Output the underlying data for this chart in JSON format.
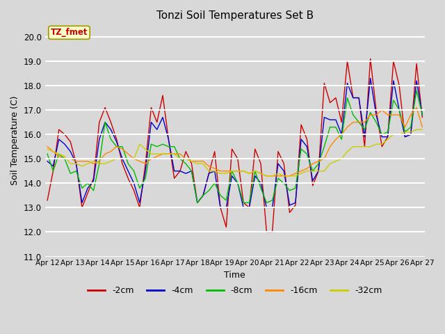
{
  "title": "Tonzi Soil Temperatures Set B",
  "xlabel": "Time",
  "ylabel": "Soil Temperature (C)",
  "ylim": [
    11.0,
    20.5
  ],
  "yticks": [
    11.0,
    12.0,
    13.0,
    14.0,
    15.0,
    16.0,
    17.0,
    18.0,
    19.0,
    20.0
  ],
  "xtick_labels": [
    "Apr 12",
    "Apr 13",
    "Apr 14",
    "Apr 15",
    "Apr 16",
    "Apr 17",
    "Apr 18",
    "Apr 19",
    "Apr 20",
    "Apr 21",
    "Apr 22",
    "Apr 23",
    "Apr 24",
    "Apr 25",
    "Apr 26",
    "Apr 27"
  ],
  "legend_labels": [
    "-2cm",
    "-4cm",
    "-8cm",
    "-16cm",
    "-32cm"
  ],
  "legend_colors": [
    "#cc0000",
    "#0000cc",
    "#00bb00",
    "#ff8800",
    "#cccc00"
  ],
  "annotation_text": "TZ_fmet",
  "annotation_color": "#cc0000",
  "annotation_bg": "#ffffcc",
  "fig_bg": "#d8d8d8",
  "plot_bg": "#d8d8d8",
  "series_neg2cm": [
    13.3,
    14.5,
    16.2,
    16.0,
    15.7,
    14.8,
    13.0,
    13.6,
    14.2,
    16.5,
    17.1,
    16.5,
    15.8,
    14.8,
    14.2,
    13.7,
    13.0,
    14.8,
    17.1,
    16.5,
    17.6,
    15.8,
    14.2,
    14.5,
    15.3,
    14.8,
    13.2,
    13.5,
    14.4,
    15.3,
    13.0,
    12.2,
    15.4,
    15.0,
    13.2,
    13.0,
    15.4,
    14.8,
    12.0,
    12.0,
    15.3,
    14.8,
    12.8,
    13.1,
    16.4,
    15.8,
    13.9,
    14.5,
    18.1,
    17.3,
    17.5,
    16.5,
    19.0,
    17.5,
    17.5,
    15.5,
    19.1,
    17.0,
    15.5,
    15.9,
    19.0,
    18.0,
    15.9,
    16.0,
    18.9,
    16.7
  ],
  "series_neg4cm": [
    14.9,
    14.7,
    15.8,
    15.6,
    15.3,
    14.8,
    13.2,
    13.8,
    14.1,
    15.8,
    16.5,
    16.2,
    15.7,
    15.0,
    14.5,
    14.0,
    13.2,
    14.5,
    16.5,
    16.2,
    16.7,
    15.8,
    14.5,
    14.5,
    14.4,
    14.5,
    13.2,
    13.5,
    14.4,
    14.5,
    13.0,
    13.0,
    14.3,
    14.0,
    13.0,
    13.0,
    14.3,
    14.0,
    13.0,
    13.0,
    14.8,
    14.5,
    13.1,
    13.2,
    15.8,
    15.5,
    14.1,
    14.5,
    16.7,
    16.6,
    16.6,
    16.0,
    18.1,
    17.5,
    17.5,
    15.9,
    18.3,
    16.8,
    15.9,
    15.9,
    18.2,
    17.0,
    15.9,
    16.0,
    18.2,
    16.8
  ],
  "series_neg8cm": [
    15.2,
    14.5,
    15.2,
    15.0,
    14.4,
    14.5,
    13.8,
    14.0,
    13.7,
    14.8,
    16.5,
    15.8,
    15.5,
    15.5,
    14.8,
    14.5,
    13.8,
    14.2,
    15.6,
    15.5,
    15.6,
    15.5,
    15.5,
    15.0,
    14.8,
    14.5,
    13.2,
    13.5,
    13.7,
    14.0,
    13.5,
    13.3,
    14.5,
    14.0,
    13.2,
    13.2,
    14.5,
    13.8,
    13.2,
    13.3,
    14.2,
    14.0,
    13.7,
    13.8,
    15.4,
    15.2,
    14.5,
    14.8,
    15.5,
    16.3,
    16.3,
    15.8,
    17.5,
    16.8,
    16.5,
    16.2,
    16.9,
    16.5,
    16.0,
    16.1,
    17.4,
    17.0,
    16.1,
    16.3,
    17.8,
    16.8
  ],
  "series_neg16cm": [
    15.5,
    15.3,
    15.1,
    15.0,
    15.0,
    14.9,
    14.9,
    14.9,
    14.8,
    14.9,
    15.2,
    15.3,
    15.5,
    15.4,
    15.2,
    15.0,
    14.9,
    14.8,
    15.0,
    15.1,
    15.2,
    15.2,
    15.2,
    15.2,
    15.0,
    14.9,
    14.9,
    14.9,
    14.7,
    14.6,
    14.5,
    14.5,
    14.5,
    14.5,
    14.5,
    14.4,
    14.5,
    14.4,
    14.3,
    14.3,
    14.3,
    14.3,
    14.3,
    14.4,
    14.5,
    14.6,
    14.8,
    14.9,
    15.0,
    15.5,
    15.8,
    16.0,
    16.3,
    16.5,
    16.5,
    16.5,
    16.8,
    16.8,
    17.0,
    16.8,
    16.8,
    16.8,
    16.3,
    16.8,
    17.1,
    16.3
  ],
  "series_neg32cm": [
    15.4,
    15.3,
    15.2,
    15.1,
    14.8,
    14.8,
    14.7,
    14.8,
    14.9,
    14.8,
    14.8,
    14.9,
    15.0,
    15.0,
    15.0,
    15.0,
    15.6,
    15.4,
    15.2,
    15.2,
    15.2,
    15.2,
    15.2,
    15.0,
    15.0,
    14.9,
    14.8,
    14.8,
    14.5,
    14.5,
    14.4,
    14.4,
    14.5,
    14.5,
    14.5,
    14.4,
    14.5,
    14.4,
    14.3,
    14.3,
    14.4,
    14.3,
    14.3,
    14.3,
    14.4,
    14.5,
    14.5,
    14.5,
    14.5,
    14.8,
    14.9,
    15.0,
    15.3,
    15.5,
    15.5,
    15.5,
    15.5,
    15.6,
    15.6,
    15.8,
    16.0,
    16.0,
    16.1,
    16.1,
    16.2,
    16.2
  ]
}
